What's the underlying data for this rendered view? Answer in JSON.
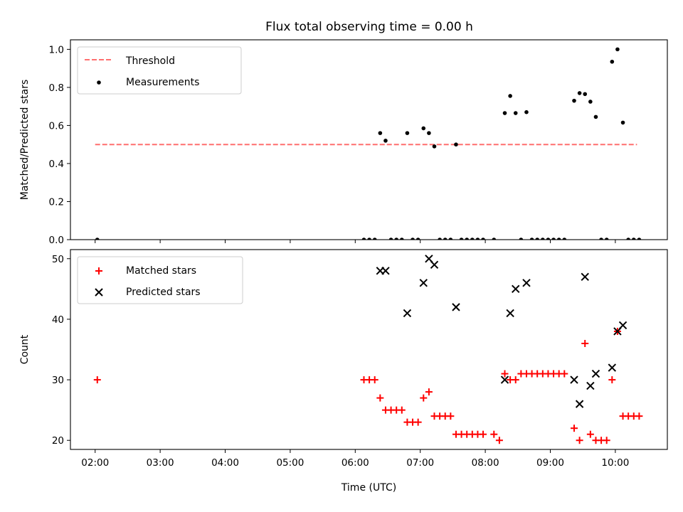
{
  "title": "Flux total observing time = 0.00 h",
  "colors": {
    "threshold": "#ff6f6f",
    "measurement": "#000000",
    "matched": "#ff0000",
    "predicted": "#000000"
  },
  "chart_data": [
    {
      "type": "scatter",
      "ylabel": "Matched/Predicted stars",
      "xlabel": "",
      "xlim_hours": [
        1.62,
        10.8
      ],
      "ylim": [
        0,
        1.05
      ],
      "yticks": [
        "0.0",
        "0.2",
        "0.4",
        "0.6",
        "0.8",
        "1.0"
      ],
      "legend_position": "upper-left",
      "legend": [
        "Threshold",
        "Measurements"
      ],
      "threshold": {
        "name": "Threshold",
        "value": 0.5,
        "x_range": [
          "02:00",
          "10:20"
        ],
        "style": "dashed"
      },
      "series": [
        {
          "name": "Measurements",
          "points": [
            [
              "02:02",
              0.0
            ],
            [
              "06:08",
              0.0
            ],
            [
              "06:13",
              0.0
            ],
            [
              "06:18",
              0.0
            ],
            [
              "06:23",
              0.56
            ],
            [
              "06:28",
              0.52
            ],
            [
              "06:33",
              0.0
            ],
            [
              "06:38",
              0.0
            ],
            [
              "06:43",
              0.0
            ],
            [
              "06:48",
              0.56
            ],
            [
              "06:53",
              0.0
            ],
            [
              "06:58",
              0.0
            ],
            [
              "07:03",
              0.585
            ],
            [
              "07:08",
              0.56
            ],
            [
              "07:13",
              0.49
            ],
            [
              "07:18",
              0.0
            ],
            [
              "07:23",
              0.0
            ],
            [
              "07:28",
              0.0
            ],
            [
              "07:33",
              0.5
            ],
            [
              "07:38",
              0.0
            ],
            [
              "07:43",
              0.0
            ],
            [
              "07:48",
              0.0
            ],
            [
              "07:53",
              0.0
            ],
            [
              "07:58",
              0.0
            ],
            [
              "08:08",
              0.0
            ],
            [
              "08:18",
              0.665
            ],
            [
              "08:23",
              0.755
            ],
            [
              "08:28",
              0.665
            ],
            [
              "08:33",
              0.0
            ],
            [
              "08:38",
              0.67
            ],
            [
              "08:43",
              0.0
            ],
            [
              "08:48",
              0.0
            ],
            [
              "08:53",
              0.0
            ],
            [
              "08:58",
              0.0
            ],
            [
              "09:03",
              0.0
            ],
            [
              "09:08",
              0.0
            ],
            [
              "09:13",
              0.0
            ],
            [
              "09:22",
              0.73
            ],
            [
              "09:27",
              0.77
            ],
            [
              "09:32",
              0.765
            ],
            [
              "09:37",
              0.725
            ],
            [
              "09:42",
              0.645
            ],
            [
              "09:47",
              0.0
            ],
            [
              "09:52",
              0.0
            ],
            [
              "09:57",
              0.935
            ],
            [
              "10:02",
              1.0
            ],
            [
              "10:07",
              0.615
            ],
            [
              "10:12",
              0.0
            ],
            [
              "10:17",
              0.0
            ],
            [
              "10:22",
              0.0
            ]
          ]
        }
      ]
    },
    {
      "type": "scatter",
      "ylabel": "Count",
      "xlabel": "Time (UTC)",
      "xlim_hours": [
        1.62,
        10.8
      ],
      "ylim": [
        18.5,
        51.5
      ],
      "yticks": [
        "20",
        "30",
        "40",
        "50"
      ],
      "xticks": [
        "02:00",
        "03:00",
        "04:00",
        "05:00",
        "06:00",
        "07:00",
        "08:00",
        "09:00",
        "10:00"
      ],
      "legend_position": "upper-left",
      "legend": [
        "Matched stars",
        "Predicted stars"
      ],
      "series": [
        {
          "name": "Matched stars",
          "marker": "plus",
          "points": [
            [
              "02:02",
              30
            ],
            [
              "06:08",
              30
            ],
            [
              "06:13",
              30
            ],
            [
              "06:18",
              30
            ],
            [
              "06:23",
              27
            ],
            [
              "06:28",
              25
            ],
            [
              "06:33",
              25
            ],
            [
              "06:38",
              25
            ],
            [
              "06:43",
              25
            ],
            [
              "06:48",
              23
            ],
            [
              "06:53",
              23
            ],
            [
              "06:58",
              23
            ],
            [
              "07:03",
              27
            ],
            [
              "07:08",
              28
            ],
            [
              "07:13",
              24
            ],
            [
              "07:18",
              24
            ],
            [
              "07:23",
              24
            ],
            [
              "07:28",
              24
            ],
            [
              "07:33",
              21
            ],
            [
              "07:38",
              21
            ],
            [
              "07:43",
              21
            ],
            [
              "07:48",
              21
            ],
            [
              "07:53",
              21
            ],
            [
              "07:58",
              21
            ],
            [
              "08:08",
              21
            ],
            [
              "08:13",
              20
            ],
            [
              "08:18",
              31
            ],
            [
              "08:23",
              30
            ],
            [
              "08:28",
              30
            ],
            [
              "08:33",
              31
            ],
            [
              "08:38",
              31
            ],
            [
              "08:43",
              31
            ],
            [
              "08:48",
              31
            ],
            [
              "08:53",
              31
            ],
            [
              "08:58",
              31
            ],
            [
              "09:03",
              31
            ],
            [
              "09:08",
              31
            ],
            [
              "09:13",
              31
            ],
            [
              "09:22",
              22
            ],
            [
              "09:27",
              20
            ],
            [
              "09:32",
              36
            ],
            [
              "09:37",
              21
            ],
            [
              "09:42",
              20
            ],
            [
              "09:47",
              20
            ],
            [
              "09:52",
              20
            ],
            [
              "09:57",
              30
            ],
            [
              "10:02",
              38
            ],
            [
              "10:07",
              24
            ],
            [
              "10:12",
              24
            ],
            [
              "10:17",
              24
            ],
            [
              "10:22",
              24
            ]
          ]
        },
        {
          "name": "Predicted stars",
          "marker": "x",
          "points": [
            [
              "06:23",
              48
            ],
            [
              "06:28",
              48
            ],
            [
              "06:48",
              41
            ],
            [
              "07:03",
              46
            ],
            [
              "07:08",
              50
            ],
            [
              "07:13",
              49
            ],
            [
              "07:33",
              42
            ],
            [
              "08:18",
              30
            ],
            [
              "08:23",
              41
            ],
            [
              "08:28",
              45
            ],
            [
              "08:38",
              46
            ],
            [
              "09:22",
              30
            ],
            [
              "09:27",
              26
            ],
            [
              "09:32",
              47
            ],
            [
              "09:37",
              29
            ],
            [
              "09:42",
              31
            ],
            [
              "09:57",
              32
            ],
            [
              "10:02",
              38
            ],
            [
              "10:07",
              39
            ]
          ]
        }
      ]
    }
  ]
}
